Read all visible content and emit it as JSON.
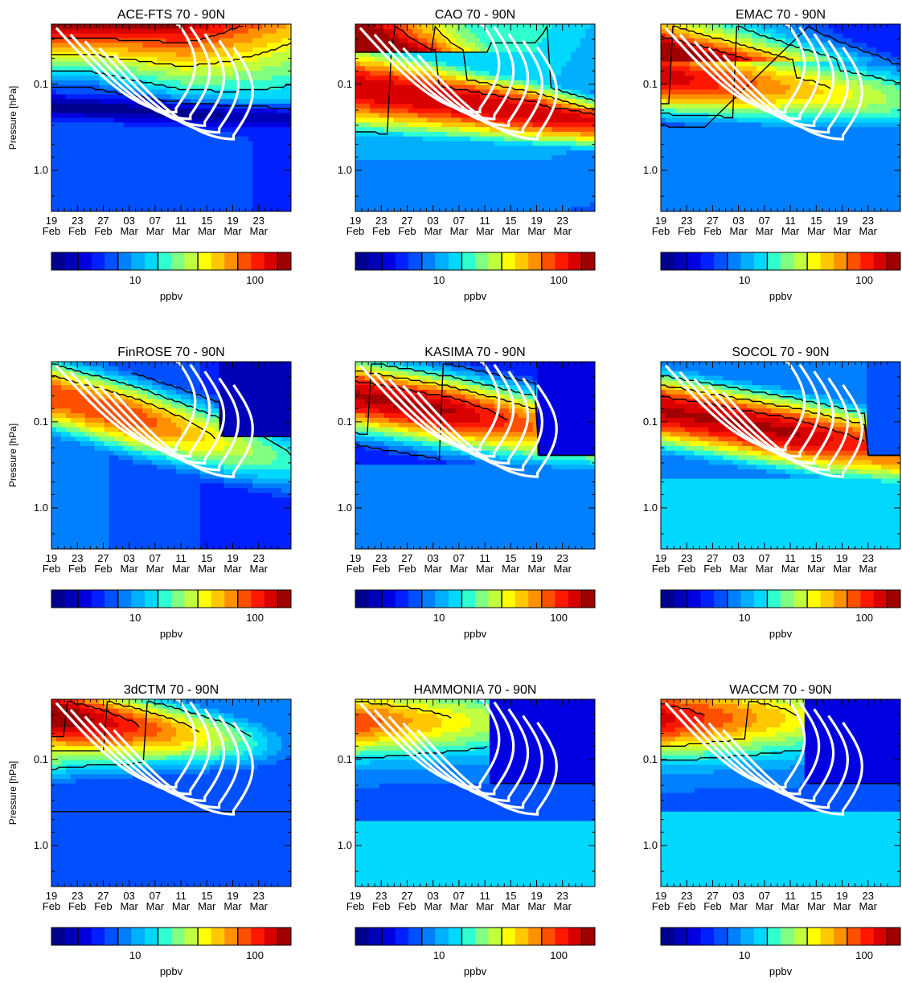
{
  "chart_data": {
    "type": "heatmap",
    "common": {
      "ylabel": "Pressure [hPa]",
      "y_tick_labels": [
        "0.1",
        "1.0"
      ],
      "y_log_scale": true,
      "y_range_hPa": [
        0.02,
        3.0
      ],
      "x_range": [
        "19 Feb",
        "27 Mar"
      ],
      "x_ticks": [
        {
          "day": "19",
          "month": "Feb"
        },
        {
          "day": "23",
          "month": "Feb"
        },
        {
          "day": "27",
          "month": "Feb"
        },
        {
          "day": "03",
          "month": "Mar"
        },
        {
          "day": "07",
          "month": "Mar"
        },
        {
          "day": "11",
          "month": "Mar"
        },
        {
          "day": "15",
          "month": "Mar"
        },
        {
          "day": "19",
          "month": "Mar"
        },
        {
          "day": "23",
          "month": "Mar"
        }
      ],
      "colorbar": {
        "unit": "ppbv",
        "tick_labels": [
          "10",
          "100"
        ],
        "log_scale": true,
        "range": [
          2,
          200
        ],
        "colors": [
          "#00008f",
          "#0000b8",
          "#0000e0",
          "#0020ff",
          "#0050ff",
          "#0080ff",
          "#00b0ff",
          "#00d8ff",
          "#30ffd0",
          "#80ff80",
          "#c0ff40",
          "#ffff00",
          "#ffc800",
          "#ff9000",
          "#ff5000",
          "#ff1800",
          "#d80000",
          "#a00000"
        ]
      },
      "contour_lines": {
        "colors": [
          "white",
          "black"
        ]
      }
    },
    "panels": [
      {
        "title": "ACE-FTS   70 - 90N",
        "show_ylabel": true
      },
      {
        "title": "CAO   70 - 90N",
        "show_ylabel": false
      },
      {
        "title": "EMAC   70 - 90N",
        "show_ylabel": false
      },
      {
        "title": "FinROSE   70 - 90N",
        "show_ylabel": true
      },
      {
        "title": "KASIMA   70 - 90N",
        "show_ylabel": false
      },
      {
        "title": "SOCOL   70 - 90N",
        "show_ylabel": false
      },
      {
        "title": "3dCTM   70 - 90N",
        "show_ylabel": true
      },
      {
        "title": "HAMMONIA   70 - 90N",
        "show_ylabel": false
      },
      {
        "title": "WACCM   70 - 90N",
        "show_ylabel": false
      }
    ]
  }
}
